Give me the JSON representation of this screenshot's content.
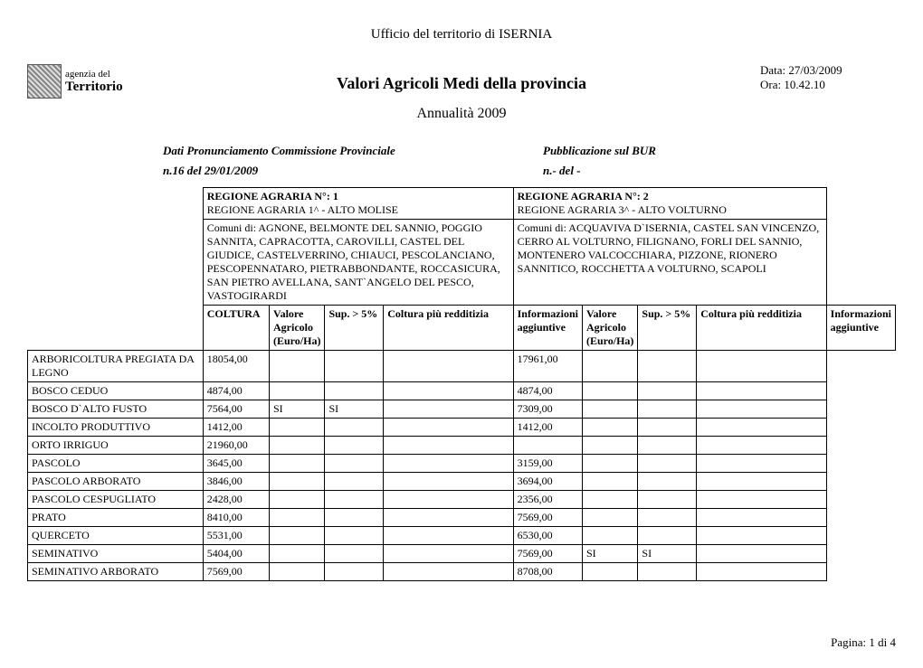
{
  "header": {
    "office": "Ufficio del territorio di  ISERNIA",
    "title": "Valori Agricoli Medi della provincia",
    "year": "Annualità  2009",
    "date_label": "Data: 27/03/2009",
    "time_label": "Ora: 10.42.10",
    "logo_line1": "agenzia del",
    "logo_line2": "Territorio"
  },
  "meta": {
    "left1": "Dati Pronunciamento Commissione Provinciale",
    "right1": "Pubblicazione sul BUR",
    "left2": "n.16 del  29/01/2009",
    "right2": "n.-  del -"
  },
  "regions": [
    {
      "heading": "REGIONE AGRARIA N°:  1",
      "sub": " REGIONE AGRARIA 1^ - ALTO MOLISE",
      "comuni": "Comuni di: AGNONE, BELMONTE DEL SANNIO, POGGIO SANNITA, CAPRACOTTA, CAROVILLI, CASTEL DEL GIUDICE, CASTELVERRINO, CHIAUCI, PESCOLANCIANO, PESCOPENNATARO, PIETRABBONDANTE, ROCCASICURA, SAN PIETRO AVELLANA, SANT`ANGELO DEL PESCO, VASTOGIRARDI"
    },
    {
      "heading": "REGIONE AGRARIA N°: 2",
      "sub": " REGIONE AGRARIA 3^ - ALTO VOLTURNO",
      "comuni": "Comuni di: ACQUAVIVA D`ISERNIA, CASTEL SAN VINCENZO, CERRO AL VOLTURNO, FILIGNANO, FORLI DEL SANNIO, MONTENERO VALCOCCHIARA, PIZZONE, RIONERO SANNITICO, ROCCHETTA A VOLTURNO, SCAPOLI"
    }
  ],
  "columns": {
    "coltura": "COLTURA",
    "valore": "Valore Agricolo (Euro/Ha)",
    "sup": "Sup. > 5%",
    "redditizia": "Coltura più redditizia",
    "info": "Informazioni aggiuntive"
  },
  "rows": [
    {
      "coltura": "ARBORICOLTURA PREGIATA DA LEGNO",
      "v1": "18054,00",
      "s1": "",
      "r1": "",
      "i1": "",
      "v2": "17961,00",
      "s2": "",
      "r2": "",
      "i2": ""
    },
    {
      "coltura": "BOSCO CEDUO",
      "v1": "4874,00",
      "s1": "",
      "r1": "",
      "i1": "",
      "v2": "4874,00",
      "s2": "",
      "r2": "",
      "i2": ""
    },
    {
      "coltura": "BOSCO D`ALTO FUSTO",
      "v1": "7564,00",
      "s1": "SI",
      "r1": "SI",
      "i1": "",
      "v2": "7309,00",
      "s2": "",
      "r2": "",
      "i2": ""
    },
    {
      "coltura": "INCOLTO PRODUTTIVO",
      "v1": "1412,00",
      "s1": "",
      "r1": "",
      "i1": "",
      "v2": "1412,00",
      "s2": "",
      "r2": "",
      "i2": ""
    },
    {
      "coltura": "ORTO IRRIGUO",
      "v1": "21960,00",
      "s1": "",
      "r1": "",
      "i1": "",
      "v2": "",
      "s2": "",
      "r2": "",
      "i2": ""
    },
    {
      "coltura": "PASCOLO",
      "v1": "3645,00",
      "s1": "",
      "r1": "",
      "i1": "",
      "v2": "3159,00",
      "s2": "",
      "r2": "",
      "i2": ""
    },
    {
      "coltura": "PASCOLO ARBORATO",
      "v1": "3846,00",
      "s1": "",
      "r1": "",
      "i1": "",
      "v2": "3694,00",
      "s2": "",
      "r2": "",
      "i2": ""
    },
    {
      "coltura": "PASCOLO CESPUGLIATO",
      "v1": "2428,00",
      "s1": "",
      "r1": "",
      "i1": "",
      "v2": "2356,00",
      "s2": "",
      "r2": "",
      "i2": ""
    },
    {
      "coltura": "PRATO",
      "v1": "8410,00",
      "s1": "",
      "r1": "",
      "i1": "",
      "v2": "7569,00",
      "s2": "",
      "r2": "",
      "i2": ""
    },
    {
      "coltura": "QUERCETO",
      "v1": "5531,00",
      "s1": "",
      "r1": "",
      "i1": "",
      "v2": "6530,00",
      "s2": "",
      "r2": "",
      "i2": ""
    },
    {
      "coltura": "SEMINATIVO",
      "v1": "5404,00",
      "s1": "",
      "r1": "",
      "i1": "",
      "v2": "7569,00",
      "s2": "SI",
      "r2": "SI",
      "i2": ""
    },
    {
      "coltura": "SEMINATIVO ARBORATO",
      "v1": "7569,00",
      "s1": "",
      "r1": "",
      "i1": "",
      "v2": "8708,00",
      "s2": "",
      "r2": "",
      "i2": ""
    }
  ],
  "footer": {
    "page": "Pagina: 1 di 4"
  }
}
